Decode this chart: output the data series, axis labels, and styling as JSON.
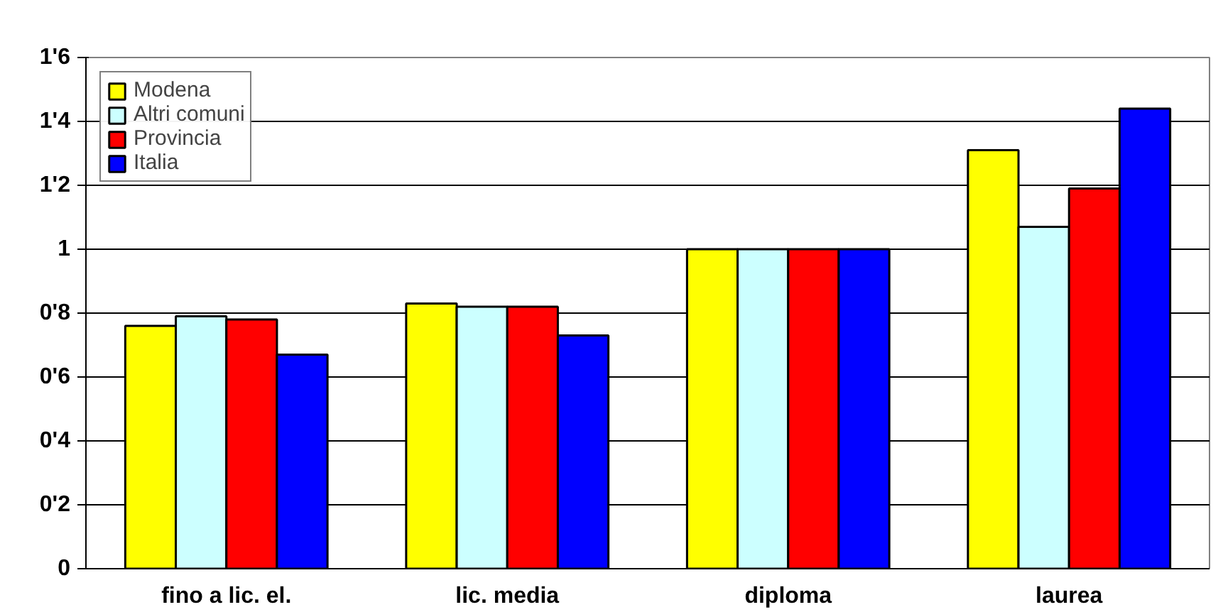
{
  "chart_data": {
    "type": "bar",
    "categories": [
      "fino a lic. el.",
      "lic. media",
      "diploma",
      "laurea"
    ],
    "series": [
      {
        "name": "Modena",
        "color": "#ffff00",
        "values": [
          0.76,
          0.83,
          1,
          1.31
        ]
      },
      {
        "name": "Altri comuni",
        "color": "#ccffff",
        "values": [
          0.79,
          0.82,
          1,
          1.07
        ]
      },
      {
        "name": "Provincia",
        "color": "#ff0000",
        "values": [
          0.78,
          0.82,
          1,
          1.19
        ]
      },
      {
        "name": "Italia",
        "color": "#0000ff",
        "values": [
          0.67,
          0.73,
          1,
          1.44
        ]
      }
    ],
    "ylim": [
      0,
      1.6
    ],
    "yticks": [
      0,
      {
        "value": 0.2,
        "label": "0'2"
      },
      {
        "value": 0.4,
        "label": "0'4"
      },
      {
        "value": 0.6,
        "label": "0'6"
      },
      {
        "value": 0.8,
        "label": "0'8"
      },
      1,
      {
        "value": 1.2,
        "label": "1'2"
      },
      {
        "value": 1.4,
        "label": "1'4"
      },
      {
        "value": 1.6,
        "label": "1'6"
      }
    ],
    "grid": "y",
    "legend": "top left"
  }
}
